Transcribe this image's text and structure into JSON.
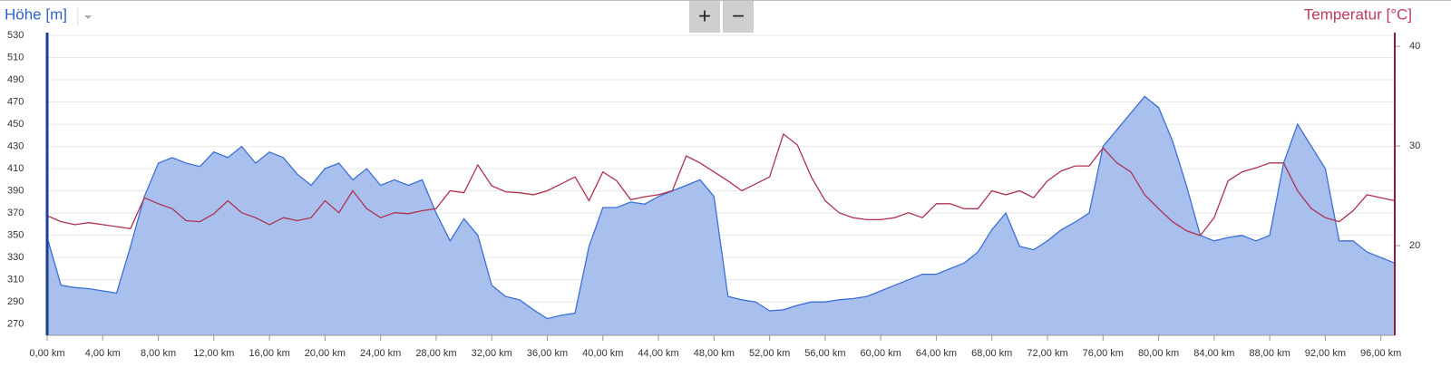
{
  "toolbar": {
    "zoom_in": "+",
    "zoom_out": "−"
  },
  "chart_data": {
    "type": "area",
    "title": "Höhe [m]",
    "y2_title": "Temperatur [°C]",
    "x": [
      0,
      1,
      2,
      3,
      4,
      5,
      6,
      7,
      8,
      9,
      10,
      11,
      12,
      13,
      14,
      15,
      16,
      17,
      18,
      19,
      20,
      21,
      22,
      23,
      24,
      25,
      26,
      27,
      28,
      29,
      30,
      31,
      32,
      33,
      34,
      35,
      36,
      37,
      38,
      39,
      40,
      41,
      42,
      43,
      44,
      45,
      46,
      47,
      48,
      49,
      50,
      51,
      52,
      53,
      54,
      55,
      56,
      57,
      58,
      59,
      60,
      61,
      62,
      63,
      64,
      65,
      66,
      67,
      68,
      69,
      70,
      71,
      72,
      73,
      74,
      75,
      76,
      77,
      78,
      79,
      80,
      81,
      82,
      83,
      84,
      85,
      86,
      87,
      88,
      89,
      90,
      91,
      92,
      93,
      94,
      95,
      96,
      97
    ],
    "series": [
      {
        "name": "Höhe [m]",
        "type": "area",
        "color": "#3b6fd8",
        "fill": "#a9c0ef",
        "values": [
          348,
          305,
          303,
          302,
          300,
          298,
          340,
          385,
          415,
          420,
          415,
          412,
          425,
          420,
          430,
          415,
          425,
          420,
          405,
          395,
          410,
          415,
          400,
          410,
          395,
          400,
          395,
          400,
          370,
          345,
          365,
          350,
          305,
          295,
          292,
          283,
          275,
          278,
          280,
          340,
          375,
          375,
          380,
          378,
          385,
          390,
          395,
          400,
          385,
          295,
          292,
          290,
          282,
          283,
          287,
          290,
          290,
          292,
          293,
          295,
          300,
          305,
          310,
          315,
          315,
          320,
          325,
          335,
          355,
          370,
          340,
          337,
          345,
          355,
          362,
          370,
          430,
          445,
          460,
          475,
          465,
          435,
          395,
          350,
          345,
          348,
          350,
          345,
          350,
          415,
          450,
          430,
          410,
          345,
          345,
          335,
          330,
          325
        ]
      },
      {
        "name": "Temperatur [°C]",
        "type": "line",
        "axis": "y2",
        "color": "#b0304e",
        "values": [
          23.0,
          22.4,
          22.1,
          22.3,
          22.1,
          21.9,
          21.7,
          24.8,
          24.2,
          23.7,
          22.5,
          22.4,
          23.2,
          24.5,
          23.3,
          22.8,
          22.1,
          22.8,
          22.5,
          22.8,
          24.5,
          23.3,
          25.5,
          23.7,
          22.8,
          23.3,
          23.2,
          23.5,
          23.7,
          25.5,
          25.3,
          28.1,
          26.0,
          25.4,
          25.3,
          25.1,
          25.5,
          26.2,
          26.9,
          24.5,
          27.4,
          26.5,
          24.6,
          24.9,
          25.1,
          25.5,
          29.0,
          28.3,
          27.4,
          26.5,
          25.5,
          26.2,
          26.9,
          31.2,
          30.1,
          26.9,
          24.5,
          23.3,
          22.8,
          22.6,
          22.6,
          22.8,
          23.3,
          22.8,
          24.2,
          24.2,
          23.7,
          23.7,
          25.5,
          25.1,
          25.5,
          24.8,
          26.5,
          27.5,
          28.0,
          28.0,
          29.8,
          28.3,
          27.4,
          25.1,
          23.7,
          22.4,
          21.5,
          21.0,
          22.8,
          26.5,
          27.4,
          27.8,
          28.3,
          28.3,
          25.5,
          23.7,
          22.8,
          22.4,
          23.5,
          25.1,
          24.8,
          24.5
        ]
      }
    ],
    "xlim": [
      0,
      97
    ],
    "xticks": [
      {
        "value": 0,
        "label": "0,00 km"
      },
      {
        "value": 4,
        "label": "4,00 km"
      },
      {
        "value": 8,
        "label": "8,00 km"
      },
      {
        "value": 12,
        "label": "12,00 km"
      },
      {
        "value": 16,
        "label": "16,00 km"
      },
      {
        "value": 20,
        "label": "20,00 km"
      },
      {
        "value": 24,
        "label": "24,00 km"
      },
      {
        "value": 28,
        "label": "28,00 km"
      },
      {
        "value": 32,
        "label": "32,00 km"
      },
      {
        "value": 36,
        "label": "36,00 km"
      },
      {
        "value": 40,
        "label": "40,00 km"
      },
      {
        "value": 44,
        "label": "44,00 km"
      },
      {
        "value": 48,
        "label": "48,00 km"
      },
      {
        "value": 52,
        "label": "52,00 km"
      },
      {
        "value": 56,
        "label": "56,00 km"
      },
      {
        "value": 60,
        "label": "60,00 km"
      },
      {
        "value": 64,
        "label": "64,00 km"
      },
      {
        "value": 68,
        "label": "68,00 km"
      },
      {
        "value": 72,
        "label": "72,00 km"
      },
      {
        "value": 76,
        "label": "76,00 km"
      },
      {
        "value": 80,
        "label": "80,00 km"
      },
      {
        "value": 84,
        "label": "84,00 km"
      },
      {
        "value": 88,
        "label": "88,00 km"
      },
      {
        "value": 92,
        "label": "92,00 km"
      },
      {
        "value": 96,
        "label": "96,00 km"
      }
    ],
    "ylim": [
      260,
      530
    ],
    "yticks": [
      270,
      290,
      310,
      330,
      350,
      370,
      390,
      410,
      430,
      450,
      470,
      490,
      510,
      530
    ],
    "y2lim": [
      11,
      41.1
    ],
    "y2ticks": [
      20,
      30,
      40
    ],
    "grid": true
  }
}
